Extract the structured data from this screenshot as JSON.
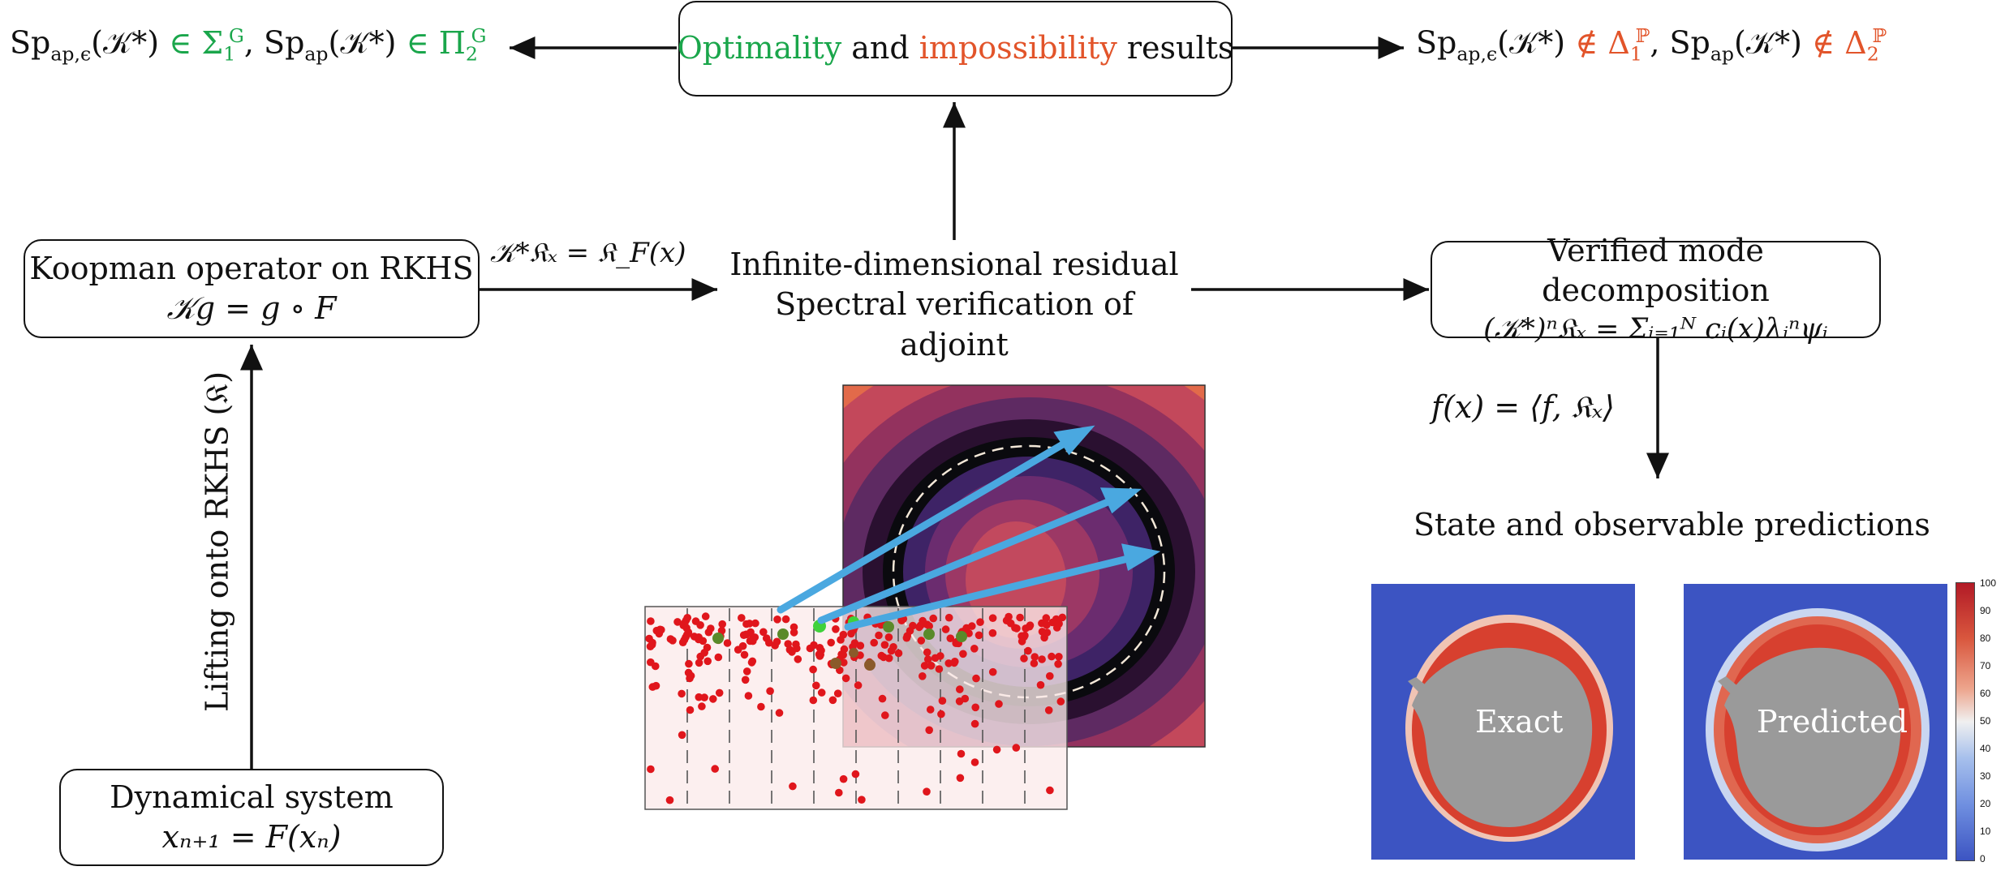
{
  "top": {
    "title_optimality": "Optimality",
    "title_and": "and",
    "title_impossibility": "impossibility",
    "title_results": "results",
    "left_sp1": "Sp",
    "left_sp1_sub": "ap,ϵ",
    "left_arg": "(𝒦*)",
    "left_in1": "∈ Σ",
    "left_in1_sub": "1",
    "left_in1_sup": "G",
    "left_sep": ",",
    "left_sp2": "Sp",
    "left_sp2_sub": "ap",
    "left_in2": "∈ Π",
    "left_in2_sub": "2",
    "left_in2_sup": "G",
    "right_notin1": "∉ Δ",
    "right_notin1_sub": "1",
    "right_notin1_sup": "ℙ",
    "right_notin2": "∉ Δ",
    "right_notin2_sub": "2",
    "right_notin2_sup": "ℙ"
  },
  "koopman": {
    "line1": "Koopman operator on RKHS",
    "line2": "𝒦g = g ∘ F"
  },
  "adjoint_label": "𝒦*𝔎ₓ = 𝔎_F(x)",
  "residual": {
    "line1": "Infinite-dimensional residual",
    "line2": "Spectral verification of adjoint"
  },
  "verified": {
    "line1": "Verified mode decomposition",
    "line2": "(𝒦*)ⁿ𝔎ₓ = Σᵢ₌₁ᴺ cᵢ(x)λᵢⁿψᵢ"
  },
  "reproducing_label": "f(x) = ⟨f, 𝔎ₓ⟩",
  "predictions_title": "State and observable predictions",
  "lifting_label": "Lifting onto RKHS (𝔎)",
  "dynamical": {
    "line1": "Dynamical system",
    "line2": "xₙ₊₁ = F(xₙ)"
  },
  "maps": {
    "exact_label": "Exact",
    "predicted_label": "Predicted"
  },
  "colorbar": {
    "ticks": [
      "100",
      "90",
      "80",
      "70",
      "60",
      "50",
      "40",
      "30",
      "20",
      "10",
      "0"
    ]
  },
  "colors": {
    "green": "#1aa64b",
    "orange": "#e2542a",
    "arrow_blue": "#4aa8e0",
    "map_blue": "#3c54c2",
    "land_gray": "#9a9a9a",
    "ice_red": "#d23a2e"
  }
}
